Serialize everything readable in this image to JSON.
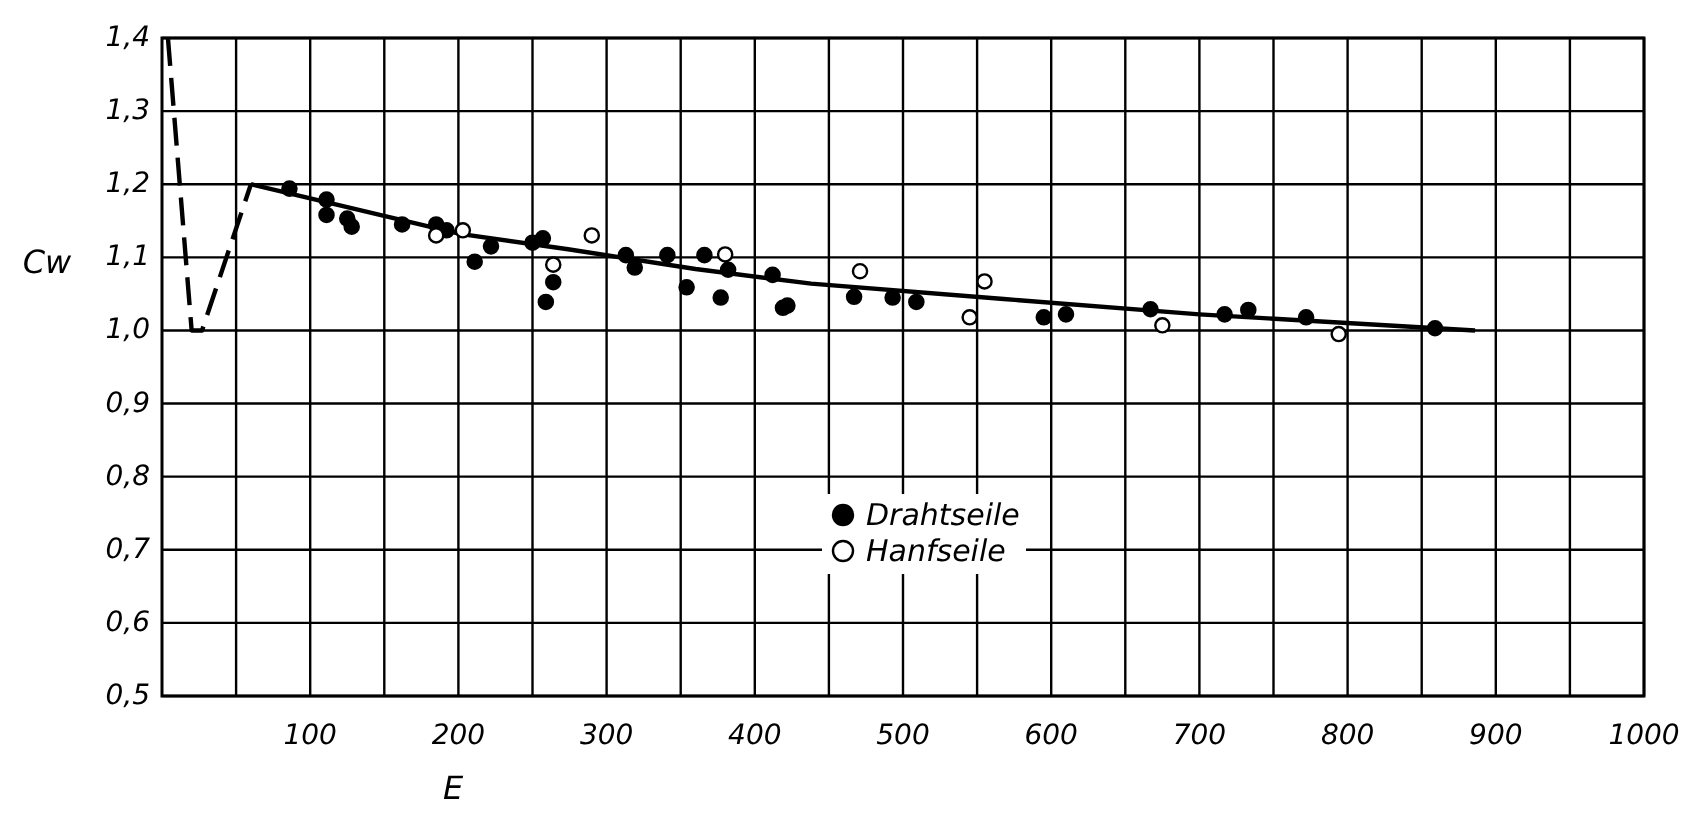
{
  "chart_data": {
    "type": "scatter",
    "xlabel": "E",
    "ylabel": "Cw",
    "xlim": [
      0,
      1000
    ],
    "ylim": [
      0.5,
      1.4
    ],
    "xticks": [
      {
        "value": 50,
        "label": null
      },
      100,
      {
        "value": 150,
        "label": null
      },
      200,
      {
        "value": 250,
        "label": null
      },
      300,
      {
        "value": 350,
        "label": null
      },
      400,
      {
        "value": 450,
        "label": null
      },
      500,
      {
        "value": 550,
        "label": null
      },
      600,
      {
        "value": 650,
        "label": null
      },
      700,
      {
        "value": 750,
        "label": null
      },
      800,
      {
        "value": 850,
        "label": null
      },
      900,
      {
        "value": 950,
        "label": null
      },
      1000
    ],
    "yticks": [
      {
        "value": 0.5,
        "label": "0,5"
      },
      {
        "value": 0.6,
        "label": "0,6"
      },
      {
        "value": 0.7,
        "label": "0,7"
      },
      {
        "value": 0.8,
        "label": "0,8"
      },
      {
        "value": 0.9,
        "label": "0,9"
      },
      {
        "value": 1.0,
        "label": "1,0"
      },
      {
        "value": 1.1,
        "label": "1,1"
      },
      {
        "value": 1.2,
        "label": "1,2"
      },
      {
        "value": 1.3,
        "label": "1,3"
      },
      {
        "value": 1.4,
        "label": "1,4"
      }
    ],
    "grid": true,
    "legend": "bottom",
    "series": [
      {
        "type": "line",
        "line_style": "dashed",
        "color": "#000000",
        "x": [
          4,
          20,
          27,
          60
        ],
        "values": [
          1.4,
          1.0,
          1.0,
          1.2
        ]
      },
      {
        "type": "line",
        "line_style": "solid",
        "color": "#000000",
        "x": [
          60,
          201,
          274,
          360,
          438,
          568,
          700,
          886
        ],
        "values": [
          1.2,
          1.132,
          1.111,
          1.084,
          1.064,
          1.043,
          1.022,
          1.0
        ]
      },
      {
        "type": "scatter",
        "marker": "circle",
        "name": "Drahtseile",
        "color": "#000000",
        "x": [
          86,
          111,
          111,
          125,
          128,
          162,
          185,
          192,
          211,
          222,
          250,
          257,
          264,
          259,
          313,
          319,
          341,
          354,
          366,
          382,
          377,
          412,
          419,
          422,
          467,
          493,
          509,
          595,
          610,
          667,
          717,
          733,
          772,
          859
        ],
        "values": [
          1.194,
          1.179,
          1.158,
          1.153,
          1.142,
          1.145,
          1.145,
          1.137,
          1.094,
          1.115,
          1.12,
          1.126,
          1.066,
          1.039,
          1.103,
          1.086,
          1.103,
          1.059,
          1.103,
          1.083,
          1.045,
          1.076,
          1.031,
          1.034,
          1.046,
          1.045,
          1.039,
          1.018,
          1.022,
          1.029,
          1.022,
          1.028,
          1.018,
          1.003
        ]
      },
      {
        "type": "scatter",
        "marker": "circle",
        "name": "Hanfseile",
        "color": "#ffffff",
        "x": [
          185,
          203,
          264,
          290,
          380,
          471,
          555,
          545,
          675,
          794
        ],
        "values": [
          1.13,
          1.137,
          1.09,
          1.13,
          1.104,
          1.081,
          1.067,
          1.018,
          1.007,
          0.995
        ]
      }
    ]
  }
}
